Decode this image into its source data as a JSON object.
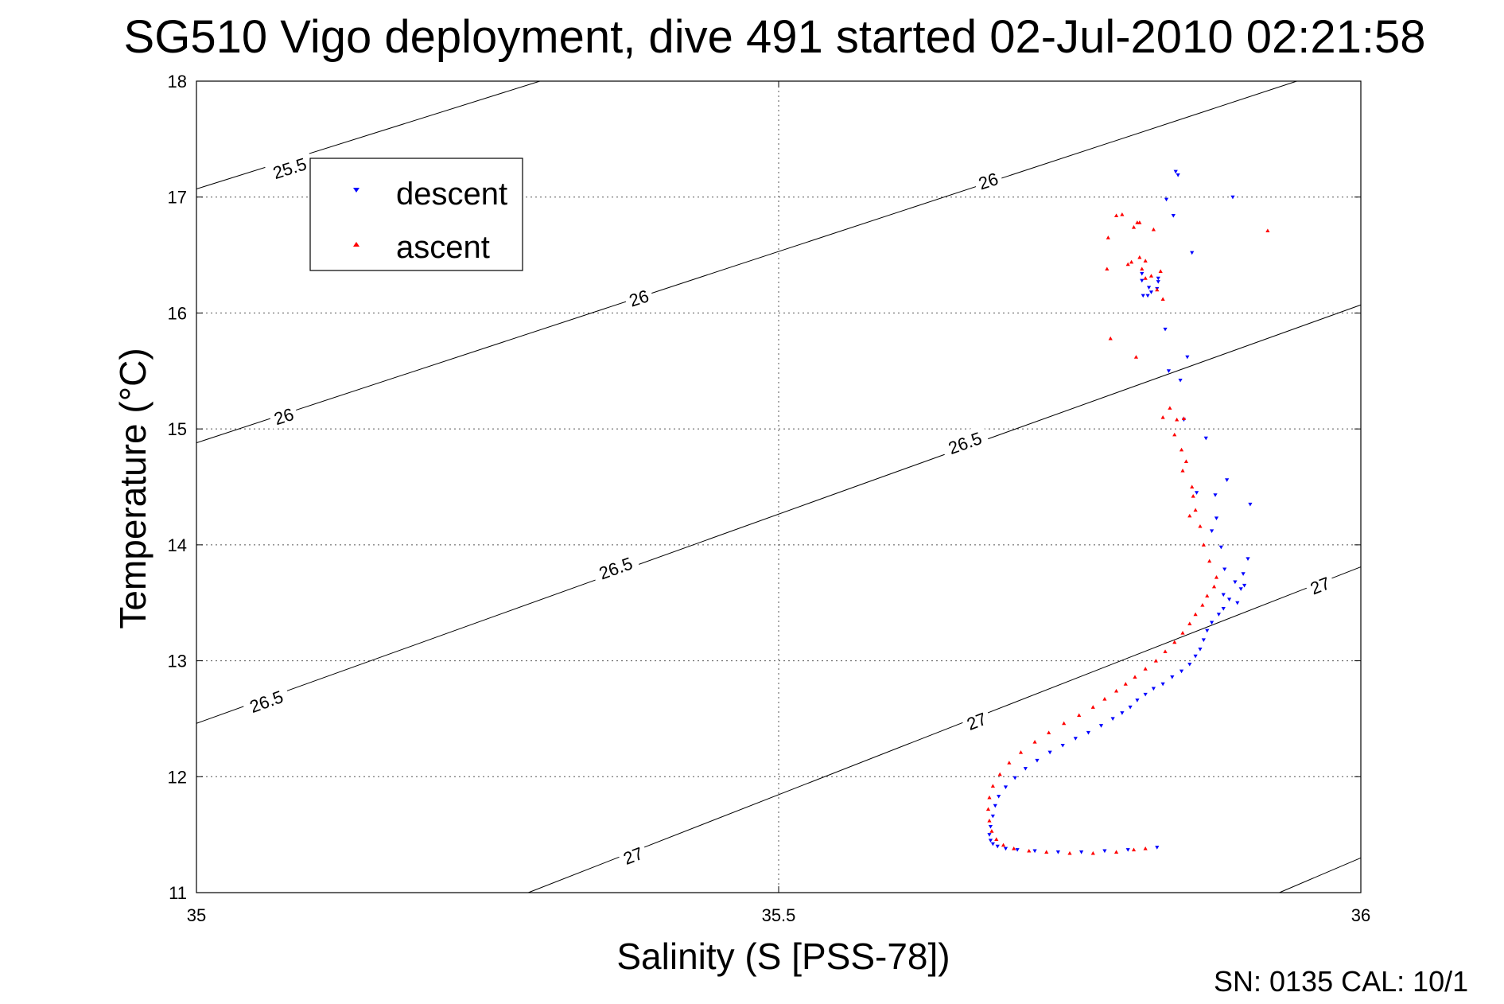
{
  "chart_data": {
    "type": "scatter",
    "title": "SG510 Vigo deployment, dive 491 started 02-Jul-2010 02:21:58",
    "xlabel": "Salinity (S [PSS-78])",
    "ylabel": "Temperature (°C)",
    "xlim": [
      35,
      36
    ],
    "ylim": [
      11,
      18
    ],
    "xticks": [
      35,
      35.5,
      36
    ],
    "yticks": [
      11,
      12,
      13,
      14,
      15,
      16,
      17,
      18
    ],
    "xtick_labels": [
      "35",
      "35.5",
      "36"
    ],
    "ytick_labels": [
      "11",
      "12",
      "13",
      "14",
      "15",
      "16",
      "17",
      "18"
    ],
    "grid": true,
    "legend_position": "top-left",
    "footer": "SN: 0135  CAL: 10/1",
    "isopycnals": [
      {
        "label": "25.5",
        "p1": [
          35.0,
          17.07
        ],
        "p2": [
          35.295,
          18.0
        ],
        "label_at": [
          35.08,
          17.25
        ]
      },
      {
        "label": "26",
        "p1": [
          35.0,
          14.88
        ],
        "p2": [
          35.945,
          18.0
        ],
        "label_at": [
          35.075,
          15.11
        ],
        "label_at2": [
          35.38,
          16.13
        ],
        "label_at3": [
          35.68,
          17.14
        ]
      },
      {
        "label": "26.5",
        "p1": [
          35.0,
          12.46
        ],
        "p2": [
          36.0,
          16.07
        ],
        "label_at": [
          35.06,
          12.65
        ],
        "label_at2": [
          35.36,
          13.8
        ],
        "label_at3": [
          35.66,
          14.88
        ]
      },
      {
        "label": "27",
        "p1": [
          35.285,
          11.0
        ],
        "p2": [
          36.0,
          13.81
        ],
        "label_at": [
          35.375,
          11.32
        ],
        "label_at2": [
          35.67,
          12.48
        ],
        "label_at3": [
          35.965,
          13.65
        ]
      },
      {
        "label": "",
        "p1": [
          35.93,
          11.0
        ],
        "p2": [
          36.0,
          11.3
        ]
      }
    ],
    "series": [
      {
        "name": "descent",
        "color": "#0000ff",
        "marker": "triangle-down",
        "x": [
          35.841,
          35.843,
          35.833,
          35.812,
          35.826,
          35.812,
          35.855,
          35.89,
          35.813,
          35.839,
          35.832,
          35.818,
          35.851,
          35.826,
          35.835,
          35.825,
          35.82,
          35.817,
          35.845,
          35.848,
          35.885,
          35.867,
          35.905,
          35.859,
          35.875,
          35.876,
          35.9,
          35.872,
          35.88,
          35.903,
          35.883,
          35.899,
          35.892,
          35.897,
          35.882,
          35.887,
          35.894,
          35.882,
          35.878,
          35.872,
          35.868,
          35.865,
          35.862,
          35.858,
          35.853,
          35.846,
          35.838,
          35.83,
          35.822,
          35.815,
          35.808,
          35.802,
          35.795,
          35.787,
          35.777,
          35.766,
          35.755,
          35.744,
          35.733,
          35.722,
          35.712,
          35.703,
          35.695,
          35.689,
          35.686,
          35.684,
          35.682,
          35.681,
          35.682,
          35.684,
          35.688,
          35.695,
          35.705,
          35.72,
          35.74,
          35.76,
          35.78,
          35.8,
          35.825
        ],
        "y": [
          17.22,
          17.19,
          16.98,
          16.34,
          16.3,
          16.28,
          16.52,
          17.0,
          16.15,
          16.84,
          15.86,
          16.22,
          15.62,
          16.27,
          15.5,
          16.21,
          16.18,
          16.15,
          15.42,
          15.08,
          14.56,
          14.92,
          14.35,
          14.45,
          14.43,
          14.23,
          13.65,
          14.12,
          13.98,
          13.88,
          13.79,
          13.75,
          13.68,
          13.62,
          13.57,
          13.53,
          13.5,
          13.45,
          13.4,
          13.33,
          13.26,
          13.18,
          13.1,
          13.04,
          12.97,
          12.91,
          12.86,
          12.8,
          12.76,
          12.71,
          12.66,
          12.6,
          12.55,
          12.5,
          12.44,
          12.38,
          12.33,
          12.27,
          12.21,
          12.14,
          12.07,
          11.99,
          11.91,
          11.83,
          11.75,
          11.66,
          11.57,
          11.5,
          11.45,
          11.42,
          11.4,
          11.38,
          11.37,
          11.36,
          11.35,
          11.35,
          11.36,
          11.37,
          11.39
        ]
      },
      {
        "name": "ascent",
        "color": "#ff0000",
        "marker": "triangle-up",
        "x": [
          35.795,
          35.79,
          35.808,
          35.805,
          35.822,
          35.81,
          35.92,
          35.783,
          35.782,
          35.8,
          35.81,
          35.815,
          35.803,
          35.812,
          35.828,
          35.82,
          35.815,
          35.825,
          35.83,
          35.785,
          35.807,
          35.836,
          35.83,
          35.842,
          35.848,
          35.84,
          35.846,
          35.85,
          35.847,
          35.855,
          35.856,
          35.858,
          35.853,
          35.862,
          35.865,
          35.87,
          35.876,
          35.874,
          35.868,
          35.864,
          35.858,
          35.853,
          35.847,
          35.84,
          35.832,
          35.824,
          35.815,
          35.806,
          35.798,
          35.79,
          35.78,
          35.77,
          35.758,
          35.745,
          35.732,
          35.72,
          35.708,
          35.698,
          35.69,
          35.684,
          35.681,
          35.68,
          35.681,
          35.683,
          35.687,
          35.693,
          35.702,
          35.715,
          35.73,
          35.75,
          35.77,
          35.79,
          35.805,
          35.815
        ],
        "y": [
          16.85,
          16.84,
          16.78,
          16.74,
          16.72,
          16.78,
          16.71,
          16.65,
          16.38,
          16.42,
          16.48,
          16.45,
          16.44,
          16.38,
          16.36,
          16.32,
          16.3,
          16.2,
          16.12,
          15.78,
          15.62,
          15.18,
          15.1,
          15.08,
          15.09,
          14.95,
          14.82,
          14.72,
          14.64,
          14.5,
          14.42,
          14.3,
          14.25,
          14.16,
          14.0,
          13.86,
          13.72,
          13.64,
          13.56,
          13.48,
          13.4,
          13.32,
          13.24,
          13.16,
          13.08,
          13.0,
          12.93,
          12.86,
          12.8,
          12.74,
          12.67,
          12.6,
          12.53,
          12.46,
          12.38,
          12.3,
          12.21,
          12.12,
          12.02,
          11.92,
          11.82,
          11.72,
          11.62,
          11.53,
          11.46,
          11.41,
          11.38,
          11.36,
          11.35,
          11.34,
          11.34,
          11.35,
          11.37,
          11.38
        ]
      }
    ]
  }
}
